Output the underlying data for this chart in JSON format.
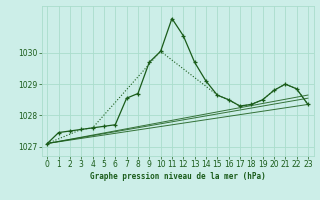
{
  "title": "Graphe pression niveau de la mer (hPa)",
  "bg_color": "#cceee8",
  "grid_color": "#aaddcc",
  "line_color": "#1a5c1a",
  "xlim": [
    -0.5,
    23.5
  ],
  "ylim": [
    1026.7,
    1031.5
  ],
  "yticks": [
    1027,
    1028,
    1029,
    1030
  ],
  "xticks": [
    0,
    1,
    2,
    3,
    4,
    5,
    6,
    7,
    8,
    9,
    10,
    11,
    12,
    13,
    14,
    15,
    16,
    17,
    18,
    19,
    20,
    21,
    22,
    23
  ],
  "series_main": {
    "x": [
      0,
      1,
      2,
      3,
      4,
      5,
      6,
      7,
      8,
      9,
      10,
      11,
      12,
      13,
      14,
      15,
      16,
      17,
      18,
      19,
      20,
      21,
      22,
      23
    ],
    "y": [
      1027.1,
      1027.45,
      1027.5,
      1027.55,
      1027.6,
      1027.65,
      1027.7,
      1028.55,
      1028.7,
      1029.7,
      1030.05,
      1031.1,
      1030.55,
      1029.7,
      1029.1,
      1028.65,
      1028.5,
      1028.3,
      1028.35,
      1028.5,
      1028.8,
      1029.0,
      1028.85,
      1028.35
    ]
  },
  "series_secondary": {
    "x": [
      0,
      3,
      4,
      10,
      15,
      16,
      17,
      18,
      19,
      20,
      21,
      22,
      23
    ],
    "y": [
      1027.1,
      1027.55,
      1027.6,
      1030.05,
      1028.65,
      1028.5,
      1028.3,
      1028.35,
      1028.5,
      1028.8,
      1029.0,
      1028.85,
      1028.35
    ]
  },
  "trend_lines": [
    {
      "x": [
        0,
        23
      ],
      "y": [
        1027.1,
        1028.35
      ]
    },
    {
      "x": [
        0,
        23
      ],
      "y": [
        1027.1,
        1028.55
      ]
    },
    {
      "x": [
        0,
        23
      ],
      "y": [
        1027.1,
        1028.65
      ]
    }
  ]
}
